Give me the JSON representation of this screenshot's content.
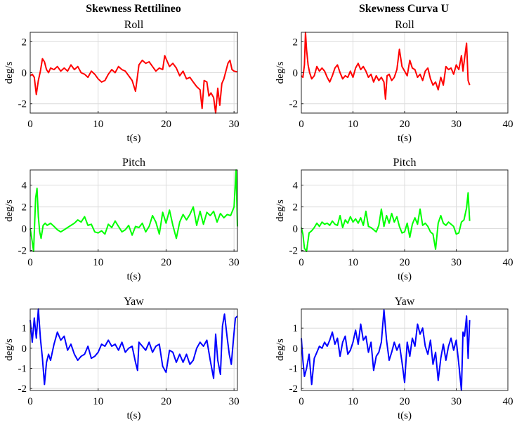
{
  "figure": {
    "col_titles": [
      "Skewness Rettilineo",
      "Skewness Curva U"
    ]
  },
  "chart_data": [
    {
      "type": "line",
      "title": "Roll",
      "xlabel": "t(s)",
      "ylabel": "deg/s",
      "xlim": [
        0,
        30.5
      ],
      "ylim": [
        -2.6,
        2.6
      ],
      "xticks": [
        0,
        10,
        20,
        30
      ],
      "yticks": [
        -2,
        0,
        2
      ],
      "grid": true,
      "series": [
        {
          "color": "#ff0000",
          "x": [
            0,
            0.3,
            0.6,
            0.9,
            1.2,
            1.5,
            1.8,
            2.1,
            2.4,
            2.7,
            3,
            3.5,
            4,
            4.5,
            5,
            5.5,
            6,
            6.5,
            7,
            7.5,
            8,
            8.5,
            9,
            9.5,
            10,
            10.5,
            11,
            11.5,
            12,
            12.5,
            13,
            13.5,
            14,
            14.5,
            15,
            15.5,
            16,
            16.5,
            17,
            17.5,
            18,
            18.5,
            19,
            19.5,
            19.8,
            20,
            20.5,
            21,
            21.5,
            22,
            22.5,
            23,
            23.5,
            24,
            24.5,
            25,
            25.3,
            25.6,
            26,
            26.3,
            26.6,
            27,
            27.3,
            27.6,
            27.9,
            28.2,
            28.5,
            28.8,
            29.1,
            29.4,
            29.7,
            30,
            30.5
          ],
          "y": [
            -0.2,
            -0.1,
            -0.3,
            -1.4,
            -0.5,
            0.1,
            0.9,
            0.7,
            0.2,
            0,
            0.3,
            0.2,
            0.4,
            0.1,
            0.3,
            0.1,
            0.5,
            0.2,
            0.4,
            0,
            -0.1,
            -0.3,
            0.1,
            -0.1,
            -0.4,
            -0.6,
            -0.5,
            -0.1,
            0.2,
            0,
            0.4,
            0.2,
            0.1,
            -0.2,
            -0.5,
            -1.2,
            0.5,
            0.8,
            0.6,
            0.7,
            0.4,
            0.1,
            0.3,
            0.2,
            1.1,
            0.9,
            0.4,
            0.6,
            0.3,
            -0.2,
            0.1,
            -0.4,
            -0.3,
            -0.6,
            -0.9,
            -1.1,
            -2.3,
            -0.5,
            -0.6,
            -1.5,
            -1.3,
            -1.6,
            -2.6,
            -1.0,
            -2.1,
            -0.7,
            -0.4,
            0.1,
            0.6,
            0.8,
            0.2,
            0.1,
            0.05
          ]
        }
      ]
    },
    {
      "type": "line",
      "title": "Roll",
      "xlabel": "t(s)",
      "ylabel": "deg/s",
      "xlim": [
        0,
        40
      ],
      "ylim": [
        -2.6,
        2.6
      ],
      "xticks": [
        0,
        10,
        20,
        30,
        40
      ],
      "yticks": [
        -2,
        0,
        2
      ],
      "grid": true,
      "series": [
        {
          "color": "#ff0000",
          "x": [
            0,
            0.3,
            0.6,
            0.8,
            1,
            1.3,
            1.6,
            2,
            2.5,
            3,
            3.5,
            4,
            4.5,
            5,
            5.5,
            6,
            6.5,
            7,
            7.5,
            8,
            8.5,
            9,
            9.5,
            10,
            10.5,
            11,
            11.5,
            12,
            12.5,
            13,
            13.5,
            14,
            14.5,
            15,
            15.5,
            16,
            16.3,
            16.6,
            17,
            17.5,
            18,
            18.5,
            19,
            19.5,
            20,
            20.5,
            21,
            21.5,
            22,
            22.5,
            23,
            23.5,
            24,
            24.5,
            25,
            25.5,
            26,
            26.5,
            27,
            27.5,
            28,
            28.5,
            29,
            29.5,
            30,
            30.5,
            31,
            31.3,
            31.6,
            32,
            32.3,
            32.6
          ],
          "y": [
            -0.2,
            -0.3,
            0.5,
            2.6,
            1.5,
            0.5,
            0,
            -0.4,
            -0.2,
            0.4,
            0.1,
            0.3,
            0.1,
            -0.3,
            -0.6,
            -0.2,
            0.3,
            0.5,
            0,
            -0.4,
            -0.2,
            -0.3,
            0.1,
            -0.3,
            0.3,
            0.6,
            0.2,
            0.4,
            0.1,
            -0.3,
            -0.1,
            -0.6,
            -0.2,
            -0.5,
            -0.3,
            -0.6,
            -1.7,
            -0.2,
            -0.1,
            -0.5,
            -0.3,
            0.2,
            1.5,
            0.4,
            0.1,
            -0.2,
            0.8,
            0.3,
            0.2,
            -0.3,
            -0.1,
            -0.5,
            0.1,
            0.3,
            -0.4,
            -0.8,
            -0.6,
            -1.1,
            -0.3,
            -0.8,
            0.4,
            0.2,
            0.3,
            -0.1,
            0.5,
            0.2,
            1.1,
            0.1,
            0.9,
            1.9,
            -0.5,
            -0.8
          ]
        }
      ]
    },
    {
      "type": "line",
      "title": "Pitch",
      "xlabel": "t(s)",
      "ylabel": "deg/s",
      "xlim": [
        0,
        30.5
      ],
      "ylim": [
        -2.1,
        5.4
      ],
      "xticks": [
        0,
        10,
        20,
        30
      ],
      "yticks": [
        -2,
        0,
        2,
        4
      ],
      "grid": true,
      "series": [
        {
          "color": "#00ff00",
          "x": [
            0,
            0.3,
            0.5,
            0.8,
            1,
            1.2,
            1.4,
            1.6,
            1.9,
            2.2,
            2.5,
            3,
            3.5,
            4,
            4.5,
            5,
            5.5,
            6,
            6.5,
            7,
            7.5,
            8,
            8.5,
            9,
            9.5,
            10,
            10.5,
            11,
            11.5,
            12,
            12.5,
            13,
            13.5,
            14,
            14.5,
            15,
            15.5,
            16,
            16.5,
            17,
            17.5,
            18,
            18.5,
            19,
            19.5,
            20,
            20.5,
            21,
            21.5,
            22,
            22.5,
            23,
            23.5,
            24,
            24.5,
            25,
            25.5,
            26,
            26.5,
            27,
            27.5,
            28,
            28.5,
            29,
            29.5,
            30,
            30.3,
            30.5
          ],
          "y": [
            0,
            -1.2,
            -2.1,
            2.8,
            3.7,
            1.1,
            -0.3,
            -0.9,
            0.3,
            0.5,
            0.3,
            0.5,
            0.2,
            -0.1,
            -0.3,
            -0.1,
            0.1,
            0.3,
            0.5,
            0.8,
            0.6,
            1.1,
            0.3,
            0.4,
            -0.3,
            -0.4,
            -0.2,
            -0.5,
            0.4,
            0.1,
            0.7,
            0.2,
            -0.3,
            -0.1,
            0.3,
            -0.6,
            0.2,
            0.1,
            0.5,
            -0.3,
            0.2,
            1.2,
            0.6,
            -0.5,
            1.5,
            0.5,
            1.7,
            0.3,
            -0.9,
            0.6,
            1.3,
            0.8,
            1.3,
            2.0,
            0.3,
            1.6,
            0.4,
            1.5,
            1.2,
            1.6,
            0.6,
            1.4,
            1.0,
            1.3,
            1.2,
            2.0,
            5.4,
            0.2
          ]
        }
      ]
    },
    {
      "type": "line",
      "title": "Pitch",
      "xlabel": "t(s)",
      "ylabel": "deg/s",
      "xlim": [
        0,
        40
      ],
      "ylim": [
        -2.1,
        5.4
      ],
      "xticks": [
        0,
        10,
        20,
        30,
        40
      ],
      "yticks": [
        -2,
        0,
        2,
        4
      ],
      "grid": true,
      "series": [
        {
          "color": "#00ff00",
          "x": [
            0,
            0.3,
            0.6,
            1,
            1.5,
            2,
            2.5,
            3,
            3.5,
            4,
            4.5,
            5,
            5.5,
            6,
            6.5,
            7,
            7.5,
            8,
            8.5,
            9,
            9.5,
            10,
            10.5,
            11,
            11.5,
            12,
            12.5,
            13,
            13.5,
            14,
            14.5,
            15,
            15.5,
            16,
            16.5,
            17,
            17.5,
            18,
            18.5,
            19,
            19.5,
            20,
            20.5,
            21,
            21.5,
            22,
            22.5,
            23,
            23.5,
            24,
            24.5,
            25,
            25.5,
            26,
            26.5,
            27,
            27.5,
            28,
            28.5,
            29,
            29.5,
            30,
            30.5,
            31,
            31.5,
            32,
            32.3,
            32.6
          ],
          "y": [
            0.1,
            -0.5,
            -1.8,
            -2.1,
            -0.4,
            -0.2,
            0.1,
            0.5,
            0.2,
            0.6,
            0.4,
            0.5,
            0.3,
            0.7,
            0.4,
            0.3,
            1.2,
            0.1,
            0.8,
            0.5,
            1.1,
            0.6,
            0.9,
            0.5,
            1.0,
            0.3,
            1.6,
            0.2,
            0.1,
            -0.1,
            -0.3,
            0.3,
            1.8,
            0.2,
            1.2,
            0.5,
            1.4,
            0.6,
            1.1,
            0.2,
            -0.4,
            -0.3,
            0.5,
            -0.8,
            0.4,
            1.0,
            0.4,
            1.8,
            0.3,
            0.5,
            0.2,
            -0.3,
            -0.5,
            -1.9,
            0.5,
            1.2,
            0.5,
            0.3,
            0.6,
            0.4,
            0.2,
            -0.5,
            -0.4,
            0.6,
            0.8,
            1.9,
            3.3,
            0.7
          ]
        }
      ]
    },
    {
      "type": "line",
      "title": "Yaw",
      "xlabel": "t(s)",
      "ylabel": "deg/s",
      "xlim": [
        0,
        30.5
      ],
      "ylim": [
        -2.1,
        1.95
      ],
      "xticks": [
        0,
        10,
        20,
        30
      ],
      "yticks": [
        -2,
        -1,
        0,
        1
      ],
      "grid": true,
      "series": [
        {
          "color": "#0000ff",
          "x": [
            0,
            0.3,
            0.6,
            0.9,
            1.2,
            1.5,
            1.8,
            2.1,
            2.4,
            2.7,
            3,
            3.5,
            4,
            4.5,
            5,
            5.5,
            6,
            6.5,
            7,
            7.5,
            8,
            8.5,
            9,
            9.5,
            10,
            10.5,
            11,
            11.5,
            12,
            12.5,
            13,
            13.5,
            14,
            14.5,
            15,
            15.5,
            15.8,
            16,
            16.5,
            17,
            17.5,
            18,
            18.5,
            19,
            19.5,
            20,
            20.5,
            21,
            21.5,
            22,
            22.5,
            23,
            23.5,
            24,
            24.5,
            25,
            25.5,
            26,
            26.5,
            27,
            27.3,
            27.6,
            28,
            28.3,
            28.6,
            29,
            29.3,
            29.6,
            29.9,
            30.2,
            30.5
          ],
          "y": [
            1.4,
            0.3,
            1.5,
            0.5,
            1.95,
            0.5,
            -0.5,
            -1.8,
            -0.7,
            -0.3,
            -0.6,
            0.2,
            0.8,
            0.4,
            0.6,
            -0.1,
            0.2,
            -0.3,
            -0.6,
            -0.4,
            -0.3,
            0.1,
            -0.5,
            -0.4,
            -0.2,
            0.2,
            0.1,
            0.4,
            0.1,
            0.2,
            -0.1,
            0.3,
            -0.2,
            0,
            0.1,
            -0.7,
            -1.1,
            0.3,
            0.1,
            -0.1,
            0.3,
            -0.2,
            0.1,
            0.2,
            -0.9,
            -1.2,
            -0.1,
            -0.2,
            -0.7,
            -0.3,
            -0.7,
            -0.3,
            -0.8,
            -0.6,
            0,
            0.3,
            0.1,
            0.4,
            -0.6,
            -1.5,
            0.7,
            -0.6,
            -1.3,
            1.1,
            1.7,
            0.5,
            -0.3,
            -0.8,
            0.4,
            1.5,
            1.6
          ]
        }
      ]
    },
    {
      "type": "line",
      "title": "Yaw",
      "xlabel": "t(s)",
      "ylabel": "deg/s",
      "xlim": [
        0,
        40
      ],
      "ylim": [
        -2.1,
        1.95
      ],
      "xticks": [
        0,
        10,
        20,
        30,
        40
      ],
      "yticks": [
        -2,
        -1,
        0,
        1
      ],
      "grid": true,
      "series": [
        {
          "color": "#0000ff",
          "x": [
            0,
            0.3,
            0.6,
            1,
            1.5,
            2,
            2.5,
            3,
            3.5,
            4,
            4.5,
            5,
            5.5,
            6,
            6.5,
            7,
            7.5,
            8,
            8.5,
            9,
            9.5,
            10,
            10.5,
            11,
            11.5,
            12,
            12.5,
            13,
            13.5,
            14,
            14.5,
            15,
            15.5,
            16,
            16.5,
            17,
            17.5,
            18,
            18.5,
            19,
            19.5,
            20,
            20.5,
            21,
            21.5,
            22,
            22.5,
            23,
            23.5,
            24,
            24.5,
            25,
            25.5,
            26,
            26.5,
            27,
            27.5,
            28,
            28.5,
            29,
            29.5,
            30,
            30.5,
            31,
            31.3,
            31.6,
            32,
            32.3,
            32.6
          ],
          "y": [
            0.5,
            -0.6,
            -1.4,
            -1.0,
            -0.3,
            -1.8,
            -0.5,
            -0.2,
            0.1,
            0,
            0.3,
            0.1,
            0.4,
            0.8,
            0.2,
            0.5,
            -0.4,
            0.3,
            0.6,
            -0.3,
            -0.1,
            0.3,
            0.9,
            0.2,
            1.2,
            0.4,
            0.6,
            -0.2,
            0.3,
            -1.1,
            -0.4,
            -0.2,
            0.3,
            1.9,
            0.4,
            -0.6,
            -0.2,
            0.3,
            -0.1,
            0.2,
            -0.7,
            -1.7,
            0.3,
            -0.4,
            0.5,
            0.1,
            1.2,
            0.7,
            1.0,
            0.1,
            -0.3,
            0.4,
            -0.8,
            -0.2,
            -1.6,
            -0.5,
            0.2,
            -0.6,
            0.1,
            0.5,
            -0.1,
            0.4,
            -0.8,
            -2.1,
            0.8,
            0.6,
            1.6,
            -0.5,
            1.4
          ]
        }
      ]
    }
  ]
}
